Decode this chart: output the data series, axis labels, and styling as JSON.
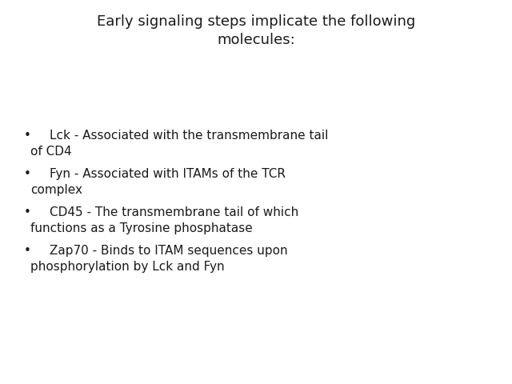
{
  "title": "Early signaling steps implicate the following\nmolecules:",
  "bullet_items": [
    {
      "line1": "    Lck - Associated with the transmembrane tail",
      "line2": "of CD4"
    },
    {
      "line1": "    Fyn - Associated with ITAMs of the TCR",
      "line2": "complex"
    },
    {
      "line1": "    CD45 - The transmembrane tail of which",
      "line2": "functions as a Tyrosine phosphatase"
    },
    {
      "line1": "    Zap70 - Binds to ITAM sequences upon",
      "line2": "phosphorylation by Lck and Fyn"
    }
  ],
  "background_color": "#ffffff",
  "text_color": "#1a1a1a",
  "title_fontsize": 13,
  "bullet_fontsize": 11,
  "bullet_char": "•",
  "font_family": "DejaVu Sans"
}
